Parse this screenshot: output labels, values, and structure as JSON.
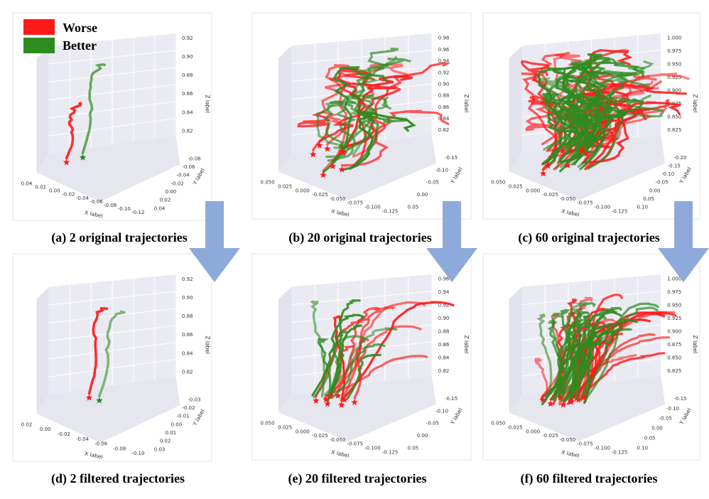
{
  "legend": {
    "worse_label": "Worse",
    "better_label": "Better",
    "worse_color": "#ff1a1a",
    "better_color": "#2e8b1f"
  },
  "colors": {
    "panel_bg": "#eaeaf2",
    "arrow": "#8eaadb",
    "star_red": "#ff1a1a",
    "star_green": "#1a8a1a"
  },
  "chart_data": [
    {
      "type": "line3d",
      "caption": "(a) 2 original trajectories",
      "xlabel": "X label",
      "ylabel": "Y label",
      "zlabel": "Z label",
      "x_ticks": [
        "0.04",
        "0.02",
        "0.00",
        "-0.02",
        "-0.04",
        "-0.06",
        "-0.08",
        "-0.10",
        "-0.12"
      ],
      "y_ticks": [
        "-0.08",
        "-0.06",
        "-0.04",
        "-0.02",
        "0.00",
        "0.02",
        "0.04"
      ],
      "z_ticks": [
        "0.92",
        "0.90",
        "0.88",
        "0.86",
        "0.84",
        "0.82"
      ],
      "worse_count": 1,
      "better_count": 1
    },
    {
      "type": "line3d",
      "caption": "(b) 20 original trajectories",
      "xlabel": "X label",
      "ylabel": "Y label",
      "zlabel": "Z label",
      "x_ticks": [
        "0.050",
        "0.025",
        "0.000",
        "-0.025",
        "-0.050",
        "-0.075",
        "-0.100",
        "-0.125"
      ],
      "y_ticks": [
        "-0.15",
        "-0.10",
        "-0.05",
        "0.00",
        "0.05"
      ],
      "z_ticks": [
        "0.98",
        "0.96",
        "0.94",
        "0.92",
        "0.90",
        "0.88",
        "0.86",
        "0.84",
        "0.82"
      ],
      "worse_count": 10,
      "better_count": 10
    },
    {
      "type": "line3d",
      "caption": "(c) 60 original trajectories",
      "xlabel": "X label",
      "ylabel": "Y label",
      "zlabel": "Z label",
      "x_ticks": [
        "0.050",
        "0.025",
        "0.000",
        "-0.025",
        "-0.050",
        "-0.075",
        "-0.100",
        "-0.125"
      ],
      "y_ticks": [
        "-0.20",
        "-0.15",
        "-0.10",
        "-0.05",
        "0.00",
        "0.05",
        "0.10"
      ],
      "z_ticks": [
        "1.000",
        "0.975",
        "0.950",
        "0.925",
        "0.900",
        "0.875",
        "0.850",
        "0.825"
      ],
      "worse_count": 30,
      "better_count": 30
    },
    {
      "type": "line3d",
      "caption": "(d) 2 filtered trajectories",
      "xlabel": "X label",
      "ylabel": "Y label",
      "zlabel": "Z label",
      "x_ticks": [
        "0.02",
        "0.00",
        "-0.02",
        "-0.04",
        "-0.06",
        "-0.08",
        "-0.10"
      ],
      "y_ticks": [
        "-0.03",
        "-0.02",
        "-0.01",
        "0.00",
        "0.01",
        "0.02",
        "0.03"
      ],
      "z_ticks": [
        "0.92",
        "0.90",
        "0.88",
        "0.86",
        "0.84",
        "0.82"
      ],
      "worse_count": 1,
      "better_count": 1
    },
    {
      "type": "line3d",
      "caption": "(e) 20 filtered trajectories",
      "xlabel": "X label",
      "ylabel": "Y label",
      "zlabel": "Z label",
      "x_ticks": [
        "0.050",
        "0.025",
        "0.000",
        "-0.025",
        "-0.050",
        "-0.075",
        "-0.100",
        "-0.125"
      ],
      "y_ticks": [
        "-0.15",
        "-0.10",
        "-0.05",
        "0.00",
        "0.05"
      ],
      "z_ticks": [
        "0.96",
        "0.94",
        "0.92",
        "0.90",
        "0.88",
        "0.86",
        "0.84",
        "0.82"
      ],
      "worse_count": 10,
      "better_count": 10
    },
    {
      "type": "line3d",
      "caption": "(f) 60 filtered trajectories",
      "xlabel": "X label",
      "ylabel": "Y label",
      "zlabel": "Z label",
      "x_ticks": [
        "0.050",
        "0.025",
        "0.000",
        "-0.025",
        "-0.050",
        "-0.075",
        "-0.100",
        "-0.125"
      ],
      "y_ticks": [
        "-0.15",
        "-0.10",
        "-0.05",
        "0.00",
        "0.05",
        "0.10"
      ],
      "z_ticks": [
        "1.000",
        "0.975",
        "0.950",
        "0.925",
        "0.900",
        "0.875",
        "0.850",
        "0.825"
      ],
      "worse_count": 30,
      "better_count": 30
    }
  ]
}
